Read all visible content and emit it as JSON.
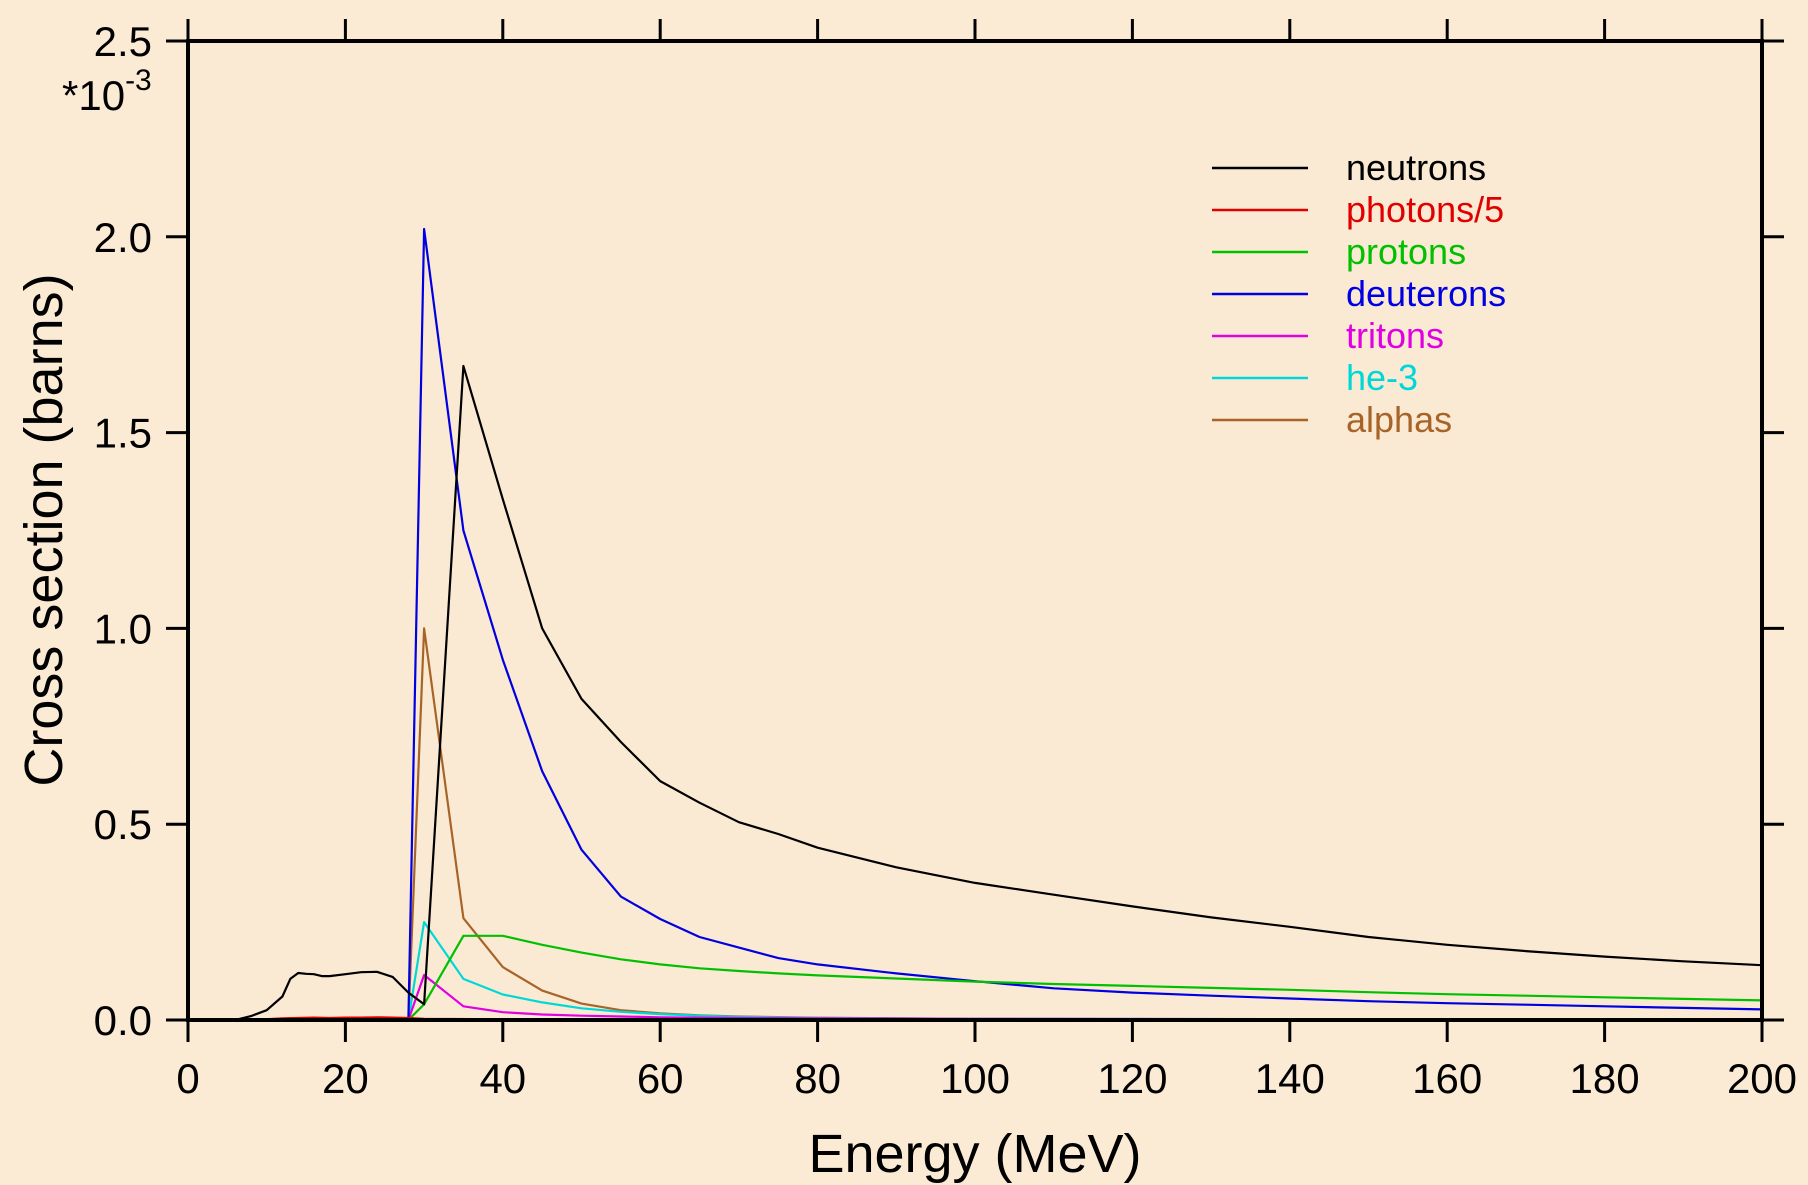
{
  "chart_data": {
    "type": "line",
    "title": "",
    "xlabel": "Energy (MeV)",
    "ylabel": "Cross section (barns)",
    "y_multiplier": {
      "base": "*10",
      "exponent": "-3"
    },
    "xlim": [
      0,
      200
    ],
    "ylim": [
      0,
      2.5
    ],
    "x_ticks": [
      0,
      20,
      40,
      60,
      80,
      100,
      120,
      140,
      160,
      180,
      200
    ],
    "x_tick_labels": [
      "0",
      "20",
      "40",
      "60",
      "80",
      "100",
      "120",
      "140",
      "160",
      "180",
      "200"
    ],
    "y_ticks": [
      0,
      0.5,
      1.0,
      1.5,
      2.0,
      2.5
    ],
    "y_tick_labels": [
      "0.0",
      "0.5",
      "1.0",
      "1.5",
      "2.0",
      "2.5"
    ],
    "grid": false,
    "legend_position": "top-right",
    "background_color": "#fbebd4",
    "series": [
      {
        "name": "neutrons",
        "color": "#000000",
        "x": [
          2,
          6,
          8,
          10,
          12,
          13,
          14,
          15,
          16,
          17,
          18,
          20,
          22,
          24,
          26,
          28,
          30,
          35,
          40,
          45,
          50,
          55,
          60,
          65,
          70,
          75,
          80,
          90,
          100,
          110,
          120,
          130,
          140,
          150,
          160,
          170,
          180,
          190,
          200
        ],
        "y": [
          0,
          0,
          0.01,
          0.025,
          0.06,
          0.105,
          0.12,
          0.118,
          0.117,
          0.112,
          0.112,
          0.117,
          0.122,
          0.123,
          0.11,
          0.07,
          0.04,
          1.67,
          1.33,
          1.0,
          0.82,
          0.71,
          0.61,
          0.555,
          0.505,
          0.475,
          0.44,
          0.39,
          0.35,
          0.32,
          0.29,
          0.262,
          0.238,
          0.212,
          0.192,
          0.176,
          0.162,
          0.15,
          0.14
        ]
      },
      {
        "name": "photons/5",
        "color": "#e00000",
        "x": [
          2,
          10,
          12,
          14,
          16,
          18,
          20,
          22,
          24,
          26,
          28,
          30,
          40,
          60,
          100,
          150,
          200
        ],
        "y": [
          0,
          0.001,
          0.003,
          0.004,
          0.005,
          0.004,
          0.005,
          0.005,
          0.006,
          0.005,
          0.004,
          0.002,
          0.001,
          0.001,
          0.001,
          0.001,
          0.001
        ]
      },
      {
        "name": "protons",
        "color": "#00c000",
        "x": [
          28,
          30,
          35,
          40,
          45,
          50,
          55,
          60,
          65,
          70,
          75,
          80,
          90,
          100,
          110,
          120,
          130,
          140,
          150,
          160,
          170,
          180,
          190,
          200
        ],
        "y": [
          0,
          0.04,
          0.215,
          0.215,
          0.192,
          0.172,
          0.155,
          0.142,
          0.132,
          0.125,
          0.119,
          0.114,
          0.106,
          0.098,
          0.092,
          0.087,
          0.082,
          0.077,
          0.071,
          0.066,
          0.062,
          0.058,
          0.054,
          0.05
        ]
      },
      {
        "name": "deuterons",
        "color": "#0000e0",
        "x": [
          28,
          30,
          35,
          40,
          45,
          50,
          55,
          60,
          65,
          70,
          75,
          80,
          90,
          100,
          110,
          120,
          130,
          140,
          150,
          160,
          170,
          180,
          190,
          200
        ],
        "y": [
          0,
          2.02,
          1.25,
          0.92,
          0.635,
          0.435,
          0.315,
          0.258,
          0.212,
          0.185,
          0.158,
          0.142,
          0.119,
          0.099,
          0.081,
          0.07,
          0.062,
          0.055,
          0.048,
          0.043,
          0.039,
          0.035,
          0.031,
          0.027
        ]
      },
      {
        "name": "tritons",
        "color": "#e000e0",
        "x": [
          28,
          30,
          35,
          40,
          45,
          50,
          55,
          60,
          70,
          80,
          100,
          150,
          200
        ],
        "y": [
          0,
          0.115,
          0.035,
          0.02,
          0.014,
          0.011,
          0.009,
          0.007,
          0.005,
          0.004,
          0.003,
          0.002,
          0.001
        ]
      },
      {
        "name": "he-3",
        "color": "#00d8d8",
        "x": [
          28,
          30,
          35,
          40,
          45,
          50,
          55,
          60,
          65,
          70,
          80,
          100,
          150,
          200
        ],
        "y": [
          0,
          0.25,
          0.105,
          0.065,
          0.045,
          0.03,
          0.021,
          0.015,
          0.011,
          0.008,
          0.005,
          0.003,
          0.002,
          0.001
        ]
      },
      {
        "name": "alphas",
        "color": "#a86428",
        "x": [
          28,
          30,
          35,
          40,
          45,
          50,
          55,
          60,
          65,
          70,
          80,
          100,
          150,
          200
        ],
        "y": [
          0,
          1.0,
          0.26,
          0.135,
          0.075,
          0.042,
          0.025,
          0.017,
          0.012,
          0.009,
          0.006,
          0.003,
          0.001,
          0.0
        ]
      }
    ]
  }
}
